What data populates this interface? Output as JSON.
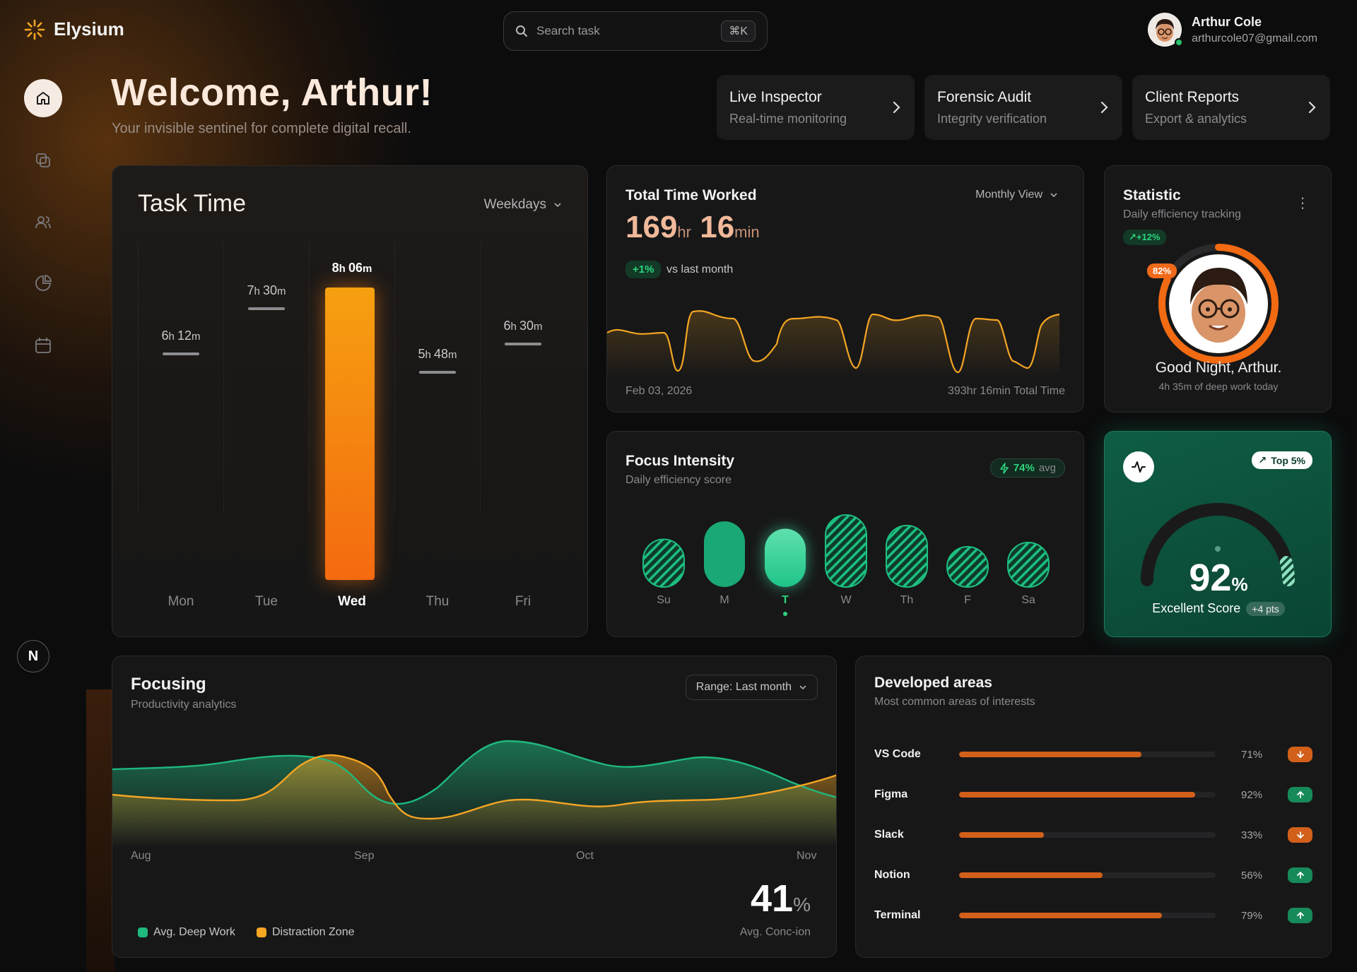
{
  "app": {
    "name": "Elysium"
  },
  "search": {
    "placeholder": "Search task",
    "shortcut": "⌘K"
  },
  "user": {
    "name": "Arthur Cole",
    "email": "arthurcole07@gmail.com"
  },
  "sidebar": {
    "items": [
      {
        "name": "home",
        "icon": "home-icon",
        "active": true
      },
      {
        "name": "copy",
        "icon": "copy-icon"
      },
      {
        "name": "users",
        "icon": "users-icon"
      },
      {
        "name": "analytics",
        "icon": "pie-chart-icon"
      },
      {
        "name": "calendar",
        "icon": "calendar-icon"
      }
    ],
    "bottom_badge": "N"
  },
  "welcome": {
    "title": "Welcome, Arthur!",
    "subtitle": "Your invisible sentinel for complete digital recall."
  },
  "quick_actions": [
    {
      "title": "Live Inspector",
      "subtitle": "Real-time monitoring"
    },
    {
      "title": "Forensic Audit",
      "subtitle": "Integrity verification"
    },
    {
      "title": "Client Reports",
      "subtitle": "Export & analytics"
    }
  ],
  "task_time": {
    "title": "Task Time",
    "range": "Weekdays",
    "days": [
      {
        "day": "Mon",
        "h": "6",
        "m": "12"
      },
      {
        "day": "Tue",
        "h": "7",
        "m": "30"
      },
      {
        "day": "Wed",
        "h": "8",
        "m": "06"
      },
      {
        "day": "Thu",
        "h": "5",
        "m": "48"
      },
      {
        "day": "Fri",
        "h": "6",
        "m": "30"
      }
    ],
    "active_day": "Wed"
  },
  "total_time": {
    "title": "Total Time Worked",
    "view": "Monthly View",
    "hours": "169",
    "hr_unit": "hr",
    "minutes": "16",
    "min_unit": "min",
    "badge": "+1%",
    "compare": "vs last month",
    "date": "Feb 03, 2026",
    "total": "393hr 16min Total Time"
  },
  "statistic": {
    "title": "Statistic",
    "subtitle": "Daily efficiency tracking",
    "trend": "+12%",
    "percent": "82%",
    "progress": 0.82,
    "greeting": "Good Night, Arthur.",
    "deep_work": "4h 35m of deep work today"
  },
  "focus_intensity": {
    "title": "Focus Intensity",
    "subtitle": "Daily efficiency score",
    "avg_value": "74%",
    "avg_label": "avg",
    "days": [
      {
        "label": "Su",
        "level": 0.45,
        "style": "hatch"
      },
      {
        "label": "M",
        "level": 0.62,
        "style": "solid"
      },
      {
        "label": "T",
        "level": 0.55,
        "style": "bright"
      },
      {
        "label": "W",
        "level": 0.68,
        "style": "hatch"
      },
      {
        "label": "Th",
        "level": 0.58,
        "style": "hatch"
      },
      {
        "label": "F",
        "level": 0.38,
        "style": "hatch"
      },
      {
        "label": "Sa",
        "level": 0.42,
        "style": "hatch"
      }
    ],
    "active_day": "T"
  },
  "score": {
    "badge": "Top 5%",
    "value": "92",
    "unit": "%",
    "label": "Excellent Score",
    "delta": "+4 pts"
  },
  "focusing": {
    "title": "Focusing",
    "subtitle": "Productivity analytics",
    "range": "Range: Last month",
    "months": [
      "Aug",
      "Sep",
      "Oct",
      "Nov"
    ],
    "big_value": "41",
    "big_unit": "%",
    "big_label": "Avg. Conc-ion",
    "legend": [
      {
        "name": "Avg. Deep Work",
        "color": "#1fb87e"
      },
      {
        "name": "Distraction Zone",
        "color": "#f5a623"
      }
    ]
  },
  "developed_areas": {
    "title": "Developed areas",
    "subtitle": "Most common areas of interests",
    "items": [
      {
        "name": "VS Code",
        "value": 71,
        "label": "71%",
        "trend": "down"
      },
      {
        "name": "Figma",
        "value": 92,
        "label": "92%",
        "trend": "up"
      },
      {
        "name": "Slack",
        "value": 33,
        "label": "33%",
        "trend": "down"
      },
      {
        "name": "Notion",
        "value": 56,
        "label": "56%",
        "trend": "up"
      },
      {
        "name": "Terminal",
        "value": 79,
        "label": "79%",
        "trend": "up"
      }
    ]
  }
}
